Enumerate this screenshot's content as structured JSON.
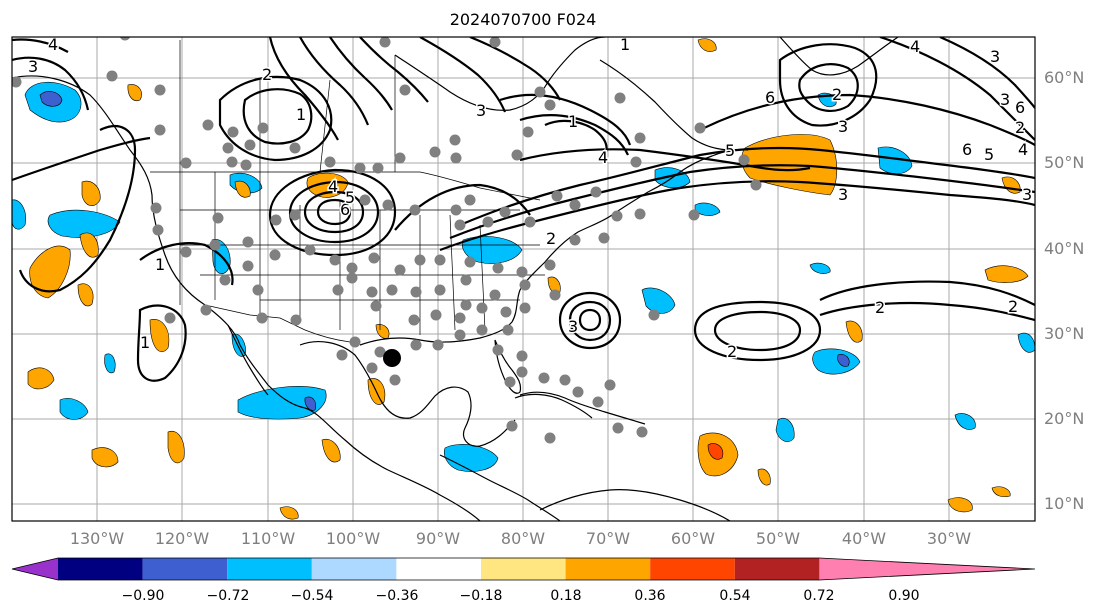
{
  "title": "2024070700 F024",
  "lat_labels": [
    "60°N",
    "50°N",
    "40°N",
    "30°N",
    "20°N",
    "10°N"
  ],
  "lon_labels": [
    "130°W",
    "120°W",
    "110°W",
    "100°W",
    "90°W",
    "80°W",
    "70°W",
    "60°W",
    "50°W",
    "40°W",
    "30°W"
  ],
  "colorbar": {
    "tick_labels": [
      "−0.90",
      "−0.72",
      "−0.54",
      "−0.36",
      "−0.18",
      "0.18",
      "0.36",
      "0.54",
      "0.72",
      "0.90"
    ],
    "colors": [
      "#9932cc",
      "#000080",
      "#3d5fd0",
      "#00bfff",
      "#add8ff",
      "#ffffff",
      "#ffe680",
      "#ffa500",
      "#ff4500",
      "#b22222",
      "#ff80b0"
    ]
  },
  "contour_labels": [
    "3",
    "4",
    "2",
    "1",
    "6",
    "5",
    "4",
    "3",
    "2",
    "1",
    "4",
    "5",
    "6",
    "3",
    "1",
    "2",
    "3",
    "4",
    "6",
    "3",
    "2",
    "6",
    "5",
    "4",
    "3",
    "3",
    "3",
    "1",
    "2",
    "1",
    "2",
    "2"
  ],
  "colors": {
    "negative_fill": "#00bfff",
    "positive_fill": "#ffa500",
    "observation_dot": "#808080",
    "storm_marker": "#000000"
  }
}
